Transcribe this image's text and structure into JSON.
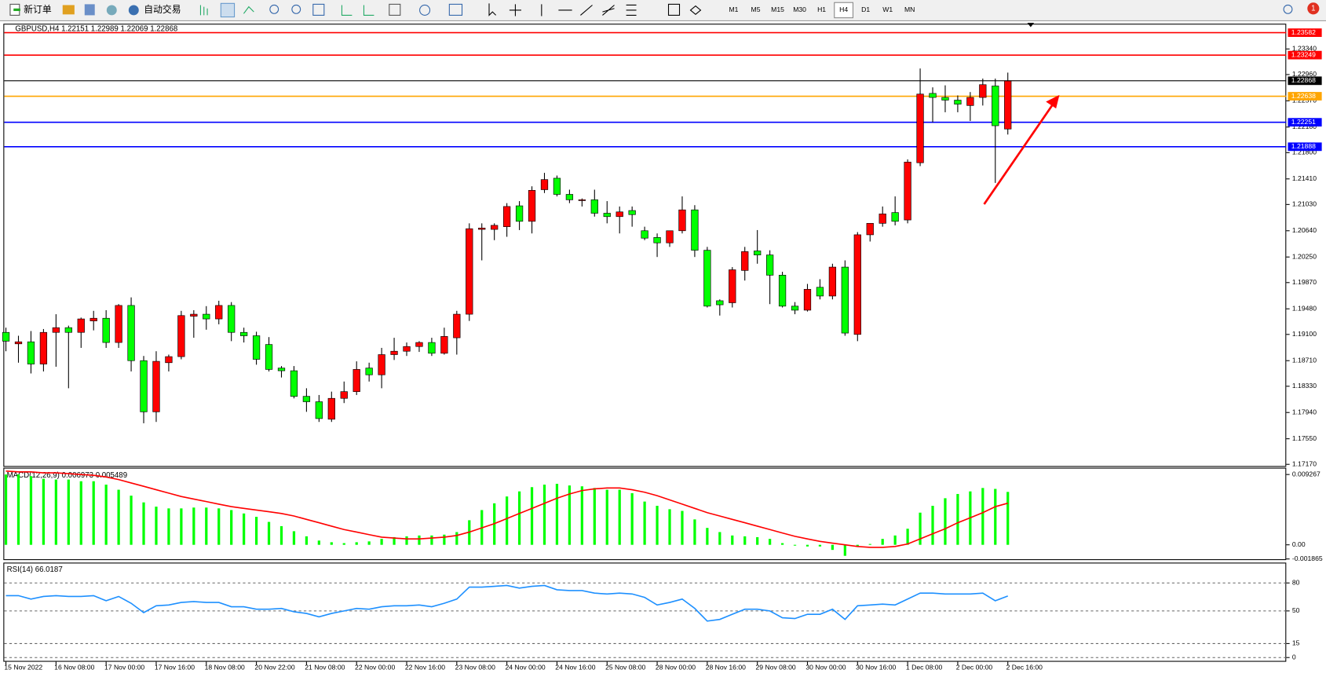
{
  "toolbar": {
    "new_order": "新订单",
    "auto_trading": "自动交易",
    "timeframes": [
      "M1",
      "M5",
      "M15",
      "M30",
      "H1",
      "H4",
      "D1",
      "W1",
      "MN"
    ],
    "active_timeframe": "H4",
    "notifications": "1"
  },
  "chart_data": [
    {
      "type": "candlestick",
      "title": "GBPUSD,H4",
      "categories": [
        "15 Nov 2022",
        null,
        null,
        null,
        "16 Nov 08:00",
        null,
        null,
        null,
        "17 Nov 00:00",
        null,
        null,
        null,
        "17 Nov 16:00",
        null,
        null,
        null,
        "18 Nov 08:00",
        null,
        null,
        null,
        "20 Nov 22:00",
        null,
        null,
        null,
        "21 Nov 08:00",
        null,
        null,
        null,
        "22 Nov 00:00",
        null,
        null,
        null,
        "22 Nov 16:00",
        null,
        null,
        null,
        "23 Nov 08:00",
        null,
        null,
        null,
        "24 Nov 00:00",
        null,
        null,
        null,
        "24 Nov 16:00",
        null,
        null,
        null,
        "25 Nov 08:00",
        null,
        null,
        null,
        "28 Nov 00:00",
        null,
        null,
        null,
        "28 Nov 16:00",
        null,
        null,
        null,
        "29 Nov 08:00",
        null,
        null,
        null,
        "30 Nov 00:00",
        null,
        null,
        null,
        "30 Nov 16:00",
        null,
        null,
        null,
        "1 Dec 08:00",
        null,
        null,
        null,
        "2 Dec 00:00",
        null,
        null,
        null,
        "2 Dec 16:00"
      ],
      "open": [
        1.1913,
        1.1896,
        1.1899,
        1.1866,
        1.1913,
        1.192,
        1.1913,
        1.193,
        1.1934,
        1.1898,
        1.1953,
        1.1871,
        1.1795,
        1.1868,
        1.1877,
        1.1937,
        1.194,
        1.1933,
        1.1953,
        1.1913,
        1.1908,
        1.1895,
        1.186,
        1.1856,
        1.1818,
        1.181,
        1.1784,
        1.1815,
        1.1825,
        1.186,
        1.185,
        1.188,
        1.1885,
        1.1892,
        1.1898,
        1.1882,
        1.1905,
        1.194,
        1.2066,
        1.2066,
        1.207,
        1.2101,
        1.2078,
        1.2125,
        1.2142,
        1.2118,
        1.2109,
        1.211,
        1.209,
        1.2085,
        1.2094,
        1.2064,
        1.2054,
        1.2046,
        1.2064,
        1.2095,
        1.2035,
        1.196,
        1.1957,
        1.2005,
        1.2034,
        1.2028,
        1.1998,
        1.1952,
        1.1946,
        1.198,
        1.1967,
        1.201,
        1.191,
        1.2058,
        1.2075,
        1.2091,
        1.208,
        1.2165,
        1.2268,
        1.2262,
        1.2258,
        1.225,
        1.2262,
        1.2279,
        1.22151
      ],
      "high": [
        1.192,
        1.1908,
        1.1915,
        1.1918,
        1.194,
        1.1923,
        1.1935,
        1.1945,
        1.1946,
        1.1955,
        1.1965,
        1.1878,
        1.1885,
        1.188,
        1.1945,
        1.1946,
        1.1952,
        1.196,
        1.1958,
        1.192,
        1.1914,
        1.1906,
        1.1863,
        1.1863,
        1.183,
        1.182,
        1.1825,
        1.184,
        1.187,
        1.1868,
        1.189,
        1.1905,
        1.1898,
        1.19,
        1.1905,
        1.192,
        1.1945,
        1.2075,
        1.2075,
        1.2075,
        1.2105,
        1.2108,
        1.213,
        1.215,
        1.2146,
        1.2125,
        1.2112,
        1.2125,
        1.2108,
        1.21,
        1.21,
        1.207,
        1.206,
        1.206,
        1.2115,
        1.2102,
        1.204,
        1.1962,
        1.201,
        1.204,
        1.2065,
        1.2035,
        1.2003,
        1.1958,
        1.1985,
        1.1992,
        1.2015,
        1.202,
        1.2062,
        1.2075,
        1.21,
        1.2115,
        1.217,
        1.2305,
        1.2277,
        1.228,
        1.2265,
        1.227,
        1.229,
        1.229,
        1.22989
      ],
      "low": [
        1.1885,
        1.1868,
        1.1852,
        1.1855,
        1.1862,
        1.183,
        1.189,
        1.1916,
        1.189,
        1.189,
        1.1855,
        1.1778,
        1.178,
        1.1855,
        1.1873,
        1.1905,
        1.1917,
        1.1925,
        1.19,
        1.1898,
        1.1865,
        1.1855,
        1.1846,
        1.1815,
        1.1795,
        1.178,
        1.178,
        1.1808,
        1.182,
        1.184,
        1.183,
        1.1872,
        1.1878,
        1.1884,
        1.1878,
        1.188,
        1.188,
        1.193,
        1.202,
        1.205,
        1.2055,
        1.2065,
        1.206,
        1.212,
        1.2115,
        1.2105,
        1.21,
        1.2085,
        1.2075,
        1.206,
        1.207,
        1.205,
        1.2025,
        1.204,
        1.206,
        1.2025,
        1.195,
        1.1938,
        1.195,
        1.199,
        1.2015,
        1.1955,
        1.195,
        1.194,
        1.1944,
        1.1962,
        1.1962,
        1.1908,
        1.19,
        1.2048,
        1.207,
        1.2072,
        1.2075,
        1.216,
        1.2225,
        1.224,
        1.224,
        1.2227,
        1.225,
        1.2135,
        1.22069
      ],
      "close": [
        1.19,
        1.1899,
        1.1866,
        1.1913,
        1.192,
        1.1913,
        1.1933,
        1.1934,
        1.1898,
        1.1953,
        1.1871,
        1.1795,
        1.187,
        1.1877,
        1.1938,
        1.194,
        1.1933,
        1.1953,
        1.1913,
        1.1908,
        1.1873,
        1.1858,
        1.1856,
        1.1818,
        1.181,
        1.1785,
        1.1815,
        1.1825,
        1.1858,
        1.185,
        1.188,
        1.1885,
        1.1892,
        1.1898,
        1.1882,
        1.1907,
        1.194,
        1.2067,
        1.2068,
        1.2072,
        1.21,
        1.2078,
        1.2124,
        1.214,
        1.2118,
        1.211,
        1.211,
        1.209,
        1.2085,
        1.2092,
        1.2088,
        1.2053,
        1.2046,
        1.2064,
        1.2095,
        1.2035,
        1.1952,
        1.1954,
        1.2006,
        1.2033,
        1.2028,
        1.1998,
        1.1952,
        1.1946,
        1.1977,
        1.1967,
        1.201,
        1.1912,
        1.2058,
        1.2075,
        1.2089,
        1.2078,
        1.2166,
        1.2267,
        1.2262,
        1.2258,
        1.2252,
        1.2262,
        1.2281,
        1.222,
        1.22868
      ],
      "up_color": "#ff0000",
      "down_color": "#00ff00",
      "ylim": [
        1.17145,
        1.23715
      ],
      "yticks": [
        {
          "value": 1.2334,
          "label": "1.23340"
        },
        {
          "value": 1.2296,
          "label": "1.22960"
        },
        {
          "value": 1.2257,
          "label": "1.22570"
        },
        {
          "value": 1.2218,
          "label": "1.22180"
        },
        {
          "value": 1.218,
          "label": "1.21800"
        },
        {
          "value": 1.2141,
          "label": "1.21410"
        },
        {
          "value": 1.2103,
          "label": "1.21030"
        },
        {
          "value": 1.2064,
          "label": "1.20640"
        },
        {
          "value": 1.2025,
          "label": "1.20250"
        },
        {
          "value": 1.1987,
          "label": "1.19870"
        },
        {
          "value": 1.1948,
          "label": "1.19480"
        },
        {
          "value": 1.191,
          "label": "1.19100"
        },
        {
          "value": 1.1871,
          "label": "1.18710"
        },
        {
          "value": 1.1833,
          "label": "1.18330"
        },
        {
          "value": 1.1794,
          "label": "1.17940"
        },
        {
          "value": 1.1755,
          "label": "1.17550"
        },
        {
          "value": 1.1717,
          "label": "1.17170"
        }
      ],
      "levels": [
        {
          "value": 1.23582,
          "color": "#ff0000"
        },
        {
          "value": 1.23249,
          "color": "#ff0000"
        },
        {
          "value": 1.22638,
          "color": "#ffa500"
        },
        {
          "value": 1.22251,
          "color": "#0000ff"
        },
        {
          "value": 1.21888,
          "color": "#0000ff"
        }
      ]
    },
    {
      "type": "macd",
      "title": "MACD(12,26,9)",
      "series": [
        {
          "color": "#00ff00",
          "values": [
            0.00927,
            0.00927,
            0.00905,
            0.00871,
            0.0086,
            0.0086,
            0.00838,
            0.00838,
            0.00793,
            0.00726,
            0.00648,
            0.00559,
            0.00503,
            0.0048,
            0.0048,
            0.00491,
            0.00491,
            0.0048,
            0.00458,
            0.00413,
            0.00369,
            0.00302,
            0.00246,
            0.00179,
            0.00112,
            0.00056,
            0.00034,
            0.00022,
            0.00034,
            0.00045,
            0.00078,
            0.00101,
            0.00112,
            0.00123,
            0.00123,
            0.00134,
            0.00168,
            0.00324,
            0.00458,
            0.00547,
            0.00637,
            0.00704,
            0.0076,
            0.00793,
            0.00804,
            0.00782,
            0.00771,
            0.00749,
            0.00726,
            0.00726,
            0.00681,
            0.0057,
            0.00514,
            0.00469,
            0.00447,
            0.00335,
            0.00223,
            0.00168,
            0.00123,
            0.00112,
            0.00101,
            0.00078,
            0.00022,
            -0.00011,
            -0.00022,
            -0.00022,
            -0.00067,
            -0.00145,
            -0.00022,
            0.00011,
            0.00078,
            0.00123,
            0.00212,
            0.00424,
            0.00514,
            0.00614,
            0.0067,
            0.00704,
            0.00749,
            0.00737,
            0.006973
          ]
        },
        {
          "color": "#ff0000",
          "values": [
            0.00972,
            0.00961,
            0.00961,
            0.00949,
            0.00949,
            0.00938,
            0.00927,
            0.00916,
            0.00894,
            0.0086,
            0.00815,
            0.00771,
            0.00726,
            0.00681,
            0.00637,
            0.00603,
            0.0057,
            0.00536,
            0.00503,
            0.0048,
            0.00458,
            0.00436,
            0.00413,
            0.0038,
            0.00335,
            0.00291,
            0.00246,
            0.00201,
            0.00168,
            0.00134,
            0.00101,
            0.00089,
            0.00078,
            0.00078,
            0.00089,
            0.00101,
            0.00123,
            0.00168,
            0.00223,
            0.00279,
            0.00346,
            0.00413,
            0.0048,
            0.00547,
            0.00614,
            0.0067,
            0.00715,
            0.00737,
            0.00749,
            0.00749,
            0.00726,
            0.00693,
            0.00648,
            0.00592,
            0.00536,
            0.0048,
            0.00424,
            0.0038,
            0.00335,
            0.00291,
            0.00246,
            0.00201,
            0.00156,
            0.00112,
            0.00078,
            0.00045,
            0.00022,
            0,
            -0.00022,
            -0.00034,
            -0.00034,
            -0.00022,
            0.00011,
            0.00078,
            0.00145,
            0.00212,
            0.00291,
            0.00357,
            0.00424,
            0.00503,
            0.005489
          ]
        }
      ],
      "ylim": [
        -0.0019,
        0.01005
      ],
      "yticks": [
        0.009267,
        {
          "value": 0,
          "label": "0.00"
        },
        -0.001865
      ]
    },
    {
      "type": "line",
      "title": "RSI(14)",
      "color": "#1e90ff",
      "values": [
        66.4,
        66.4,
        62.7,
        65.5,
        66.4,
        65.5,
        65.5,
        66.4,
        60.9,
        65.5,
        58.2,
        48.2,
        55.5,
        56.4,
        59.1,
        60.0,
        59.1,
        59.1,
        54.5,
        54.5,
        51.8,
        51.8,
        52.7,
        49.1,
        47.3,
        43.6,
        47.3,
        50.0,
        52.7,
        51.8,
        54.5,
        55.5,
        55.5,
        56.4,
        54.5,
        58.2,
        62.7,
        75.5,
        75.5,
        76.4,
        77.3,
        74.5,
        76.4,
        77.3,
        72.7,
        71.8,
        71.8,
        69.1,
        68.2,
        69.1,
        68.2,
        64.5,
        56.4,
        59.1,
        62.7,
        52.7,
        39.1,
        40.9,
        46.4,
        51.8,
        51.8,
        50.0,
        42.7,
        41.8,
        46.4,
        46.4,
        51.8,
        40.9,
        55.5,
        56.4,
        57.3,
        56.4,
        62.7,
        69.1,
        69.1,
        68.2,
        68.2,
        68.2,
        69.1,
        60.9,
        66.0187
      ],
      "ylim": [
        -3.6,
        100.9
      ],
      "yticks": [
        80,
        50,
        15,
        0
      ]
    }
  ]
}
